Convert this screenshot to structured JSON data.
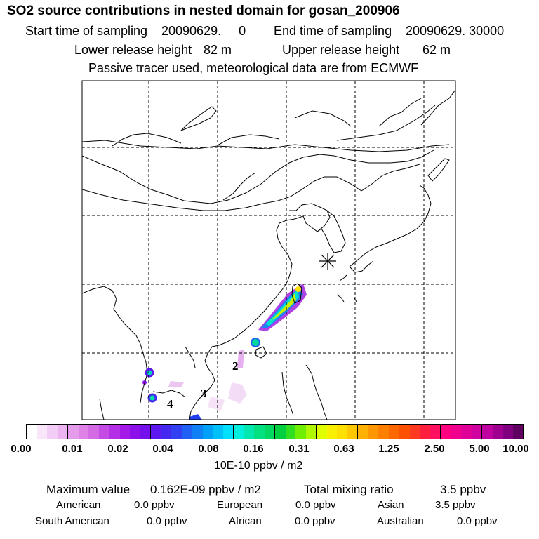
{
  "header": {
    "title": "SO2 source contributions in nested domain for gosan_200906",
    "start_label": "Start time of sampling",
    "start_value": "20090629.     0",
    "end_label": "End time of sampling",
    "end_value": "20090629. 30000",
    "lower_label": "Lower release height",
    "lower_value": "82 m",
    "upper_label": "Upper release height",
    "upper_value": "62 m",
    "note": "Passive tracer used, meteorological data are from ECMWF"
  },
  "map": {
    "receptor_marker": "asterisk-icon",
    "source_labels": [
      "2",
      "3",
      "4"
    ]
  },
  "colorbar": {
    "ticks": [
      "0.00",
      "0.01",
      "0.02",
      "0.04",
      "0.08",
      "0.16",
      "0.31",
      "0.63",
      "1.25",
      "2.50",
      "5.00",
      "10.00"
    ],
    "unit": "10E-10 ppbv / m2",
    "segments": [
      [
        "#ffffff",
        "#fae6fb",
        "#f3cdf6",
        "#ecb4f1"
      ],
      [
        "#e59bec",
        "#de82e7",
        "#d46ae4",
        "#c44ce4"
      ],
      [
        "#b430e6",
        "#a418e8",
        "#8c10ea",
        "#7410ec"
      ],
      [
        "#5c18ee",
        "#4428f0",
        "#3040f2",
        "#2060f4"
      ],
      [
        "#1080f6",
        "#00a0f8",
        "#00c0fa",
        "#00e0fc"
      ],
      [
        "#00f0e0",
        "#00e8b0",
        "#00e080",
        "#00d860"
      ],
      [
        "#00d040",
        "#30e020",
        "#70f000",
        "#b0f800"
      ],
      [
        "#e0ff00",
        "#f8f000",
        "#ffe000",
        "#ffc800"
      ],
      [
        "#ffb000",
        "#ff9800",
        "#ff8000",
        "#ff6800"
      ],
      [
        "#ff5000",
        "#ff3820",
        "#ff2040",
        "#ff1060"
      ],
      [
        "#ff0080",
        "#f0008c",
        "#e00098",
        "#d000a0"
      ],
      [
        "#c000a0",
        "#a00090",
        "#800080",
        "#600060"
      ]
    ]
  },
  "summary": {
    "max_label": "Maximum value",
    "max_value": "0.162E-09 ppbv / m2",
    "total_label": "Total mixing ratio",
    "total_value": "3.5 ppbv",
    "regions": [
      {
        "name": "American",
        "value": "0.0 ppbv"
      },
      {
        "name": "European",
        "value": "0.0 ppbv"
      },
      {
        "name": "Asian",
        "value": "3.5 ppbv"
      },
      {
        "name": "South American",
        "value": "0.0 ppbv"
      },
      {
        "name": "African",
        "value": "0.0 ppbv"
      },
      {
        "name": "Australian",
        "value": "0.0 ppbv"
      }
    ]
  }
}
